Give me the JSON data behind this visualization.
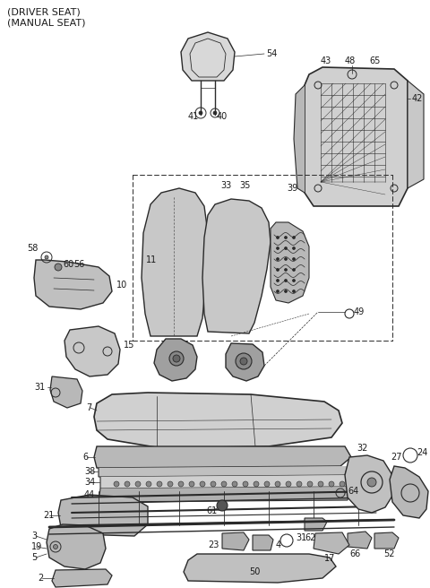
{
  "bg_color": "#ffffff",
  "line_color": "#2a2a2a",
  "text_color": "#1a1a1a",
  "font_size": 7.0,
  "title_font_size": 8.0,
  "fig_w": 4.8,
  "fig_h": 6.56,
  "dpi": 100
}
